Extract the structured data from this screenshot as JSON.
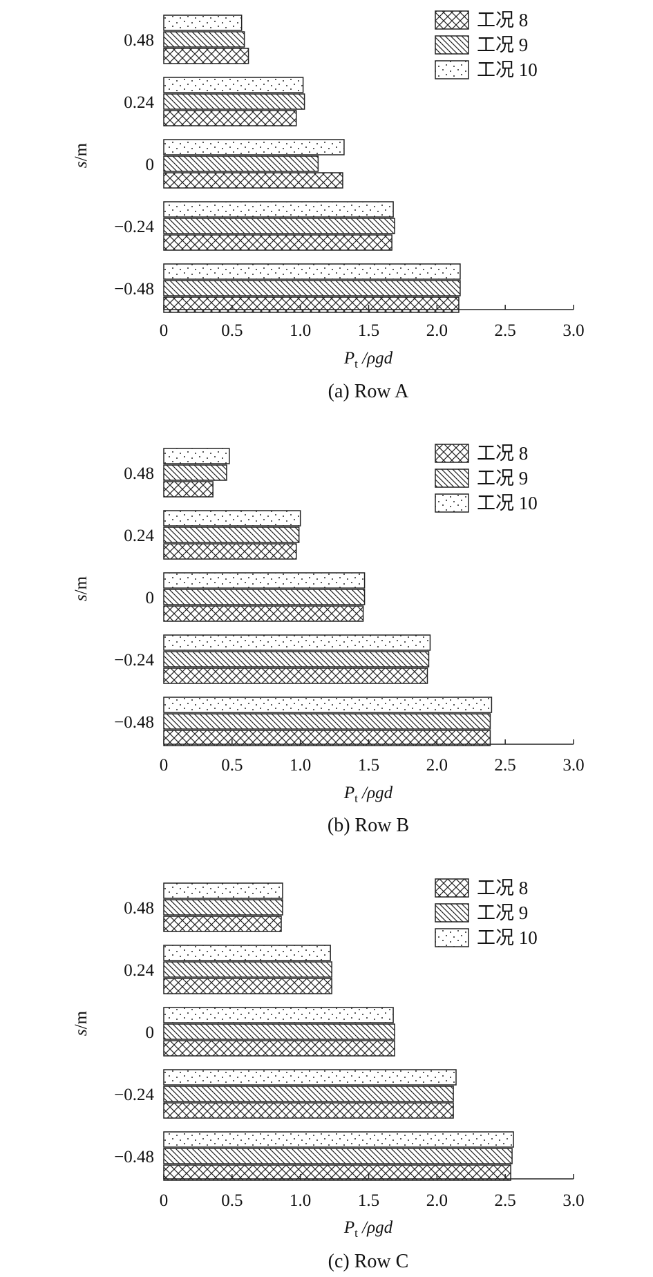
{
  "chart_data": [
    {
      "type": "bar",
      "orientation": "horizontal",
      "caption": "(a) Row A",
      "ylabel": "s/m",
      "xlabel_main": "P",
      "xlabel_sub": "t",
      "xlabel_rest": " /ρgd",
      "xlim": [
        0,
        3.0
      ],
      "x_ticks": [
        "0",
        "0.5",
        "1.0",
        "1.5",
        "2.0",
        "2.5",
        "3.0"
      ],
      "categories": [
        "0.48",
        "0.24",
        "0",
        "−0.24",
        "−0.48"
      ],
      "legend": [
        "工况 8",
        "工况 9",
        "工况 10"
      ],
      "legend_position": "top-right",
      "series": [
        {
          "name": "工况 8",
          "pattern": "crosshatch",
          "values": [
            0.62,
            0.97,
            1.31,
            1.67,
            2.16
          ]
        },
        {
          "name": "工况 9",
          "pattern": "diagonal",
          "values": [
            0.59,
            1.03,
            1.13,
            1.69,
            2.17
          ]
        },
        {
          "name": "工况 10",
          "pattern": "dots",
          "values": [
            0.57,
            1.02,
            1.32,
            1.68,
            2.17
          ]
        }
      ]
    },
    {
      "type": "bar",
      "orientation": "horizontal",
      "caption": "(b) Row B",
      "ylabel": "s/m",
      "xlabel_main": "P",
      "xlabel_sub": "t",
      "xlabel_rest": " /ρgd",
      "xlim": [
        0,
        3.0
      ],
      "x_ticks": [
        "0",
        "0.5",
        "1.0",
        "1.5",
        "2.0",
        "2.5",
        "3.0"
      ],
      "categories": [
        "0.48",
        "0.24",
        "0",
        "−0.24",
        "−0.48"
      ],
      "legend": [
        "工况 8",
        "工况 9",
        "工况 10"
      ],
      "legend_position": "top-right",
      "series": [
        {
          "name": "工况 8",
          "pattern": "crosshatch",
          "values": [
            0.36,
            0.97,
            1.46,
            1.93,
            2.39
          ]
        },
        {
          "name": "工况 9",
          "pattern": "diagonal",
          "values": [
            0.46,
            0.99,
            1.47,
            1.94,
            2.39
          ]
        },
        {
          "name": "工况 10",
          "pattern": "dots",
          "values": [
            0.48,
            1.0,
            1.47,
            1.95,
            2.4
          ]
        }
      ]
    },
    {
      "type": "bar",
      "orientation": "horizontal",
      "caption": "(c) Row C",
      "ylabel": "s/m",
      "xlabel_main": "P",
      "xlabel_sub": "t",
      "xlabel_rest": " /ρgd",
      "xlim": [
        0,
        3.0
      ],
      "x_ticks": [
        "0",
        "0.5",
        "1.0",
        "1.5",
        "2.0",
        "2.5",
        "3.0"
      ],
      "categories": [
        "0.48",
        "0.24",
        "0",
        "−0.24",
        "−0.48"
      ],
      "legend": [
        "工况 8",
        "工况 9",
        "工况 10"
      ],
      "legend_position": "top-right",
      "series": [
        {
          "name": "工况 8",
          "pattern": "crosshatch",
          "values": [
            0.86,
            1.23,
            1.69,
            2.12,
            2.54
          ]
        },
        {
          "name": "工况 9",
          "pattern": "diagonal",
          "values": [
            0.87,
            1.23,
            1.69,
            2.12,
            2.55
          ]
        },
        {
          "name": "工况 10",
          "pattern": "dots",
          "values": [
            0.87,
            1.22,
            1.68,
            2.14,
            2.56
          ]
        }
      ]
    }
  ]
}
